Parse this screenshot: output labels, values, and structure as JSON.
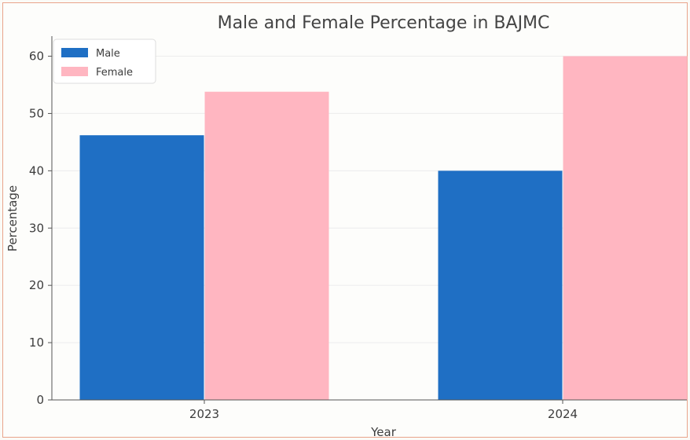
{
  "chart_data": {
    "type": "bar",
    "title": "Male and Female Percentage in BAJMC",
    "xlabel": "Year",
    "ylabel": "Percentage",
    "categories": [
      "2023",
      "2024"
    ],
    "series": [
      {
        "name": "Male",
        "color": "#1f6fc4",
        "values": [
          46.2,
          40.0
        ]
      },
      {
        "name": "Female",
        "color": "#ffb6c1",
        "values": [
          53.8,
          60.0
        ]
      }
    ],
    "ylim": [
      0,
      63.5
    ],
    "yticks": [
      0,
      10,
      20,
      30,
      40,
      50,
      60
    ],
    "grid": true,
    "legend_position": "top-left"
  }
}
